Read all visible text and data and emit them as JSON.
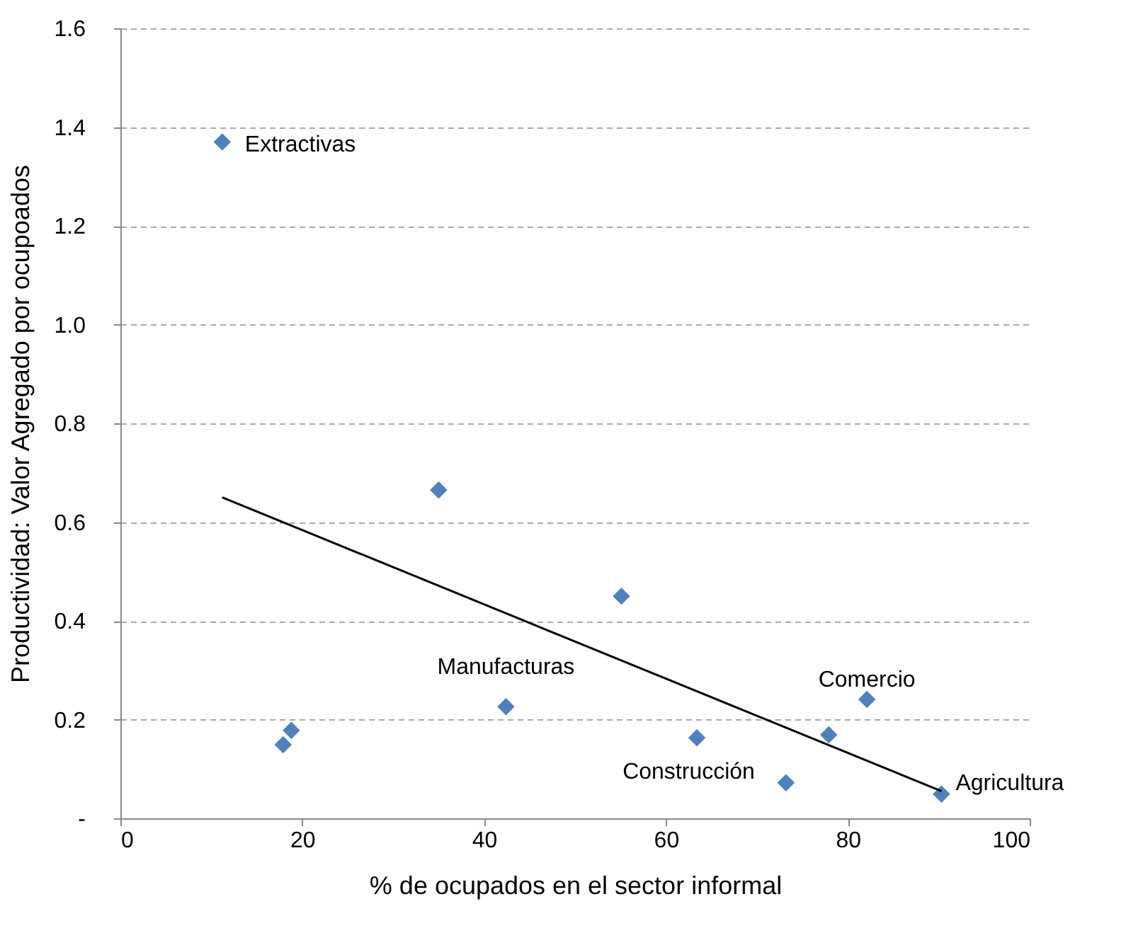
{
  "chart_data": {
    "type": "scatter",
    "xlabel": "% de ocupados en el sector informal",
    "ylabel": "Productividad: Valor Agregado por ocupoados",
    "xlim": [
      0,
      100
    ],
    "xticks": [
      0,
      20,
      40,
      60,
      80,
      100
    ],
    "ylim": [
      0,
      1.6
    ],
    "yticks": [
      {
        "value": 0,
        "label": "-"
      },
      {
        "value": 0.2,
        "label": "0.2"
      },
      {
        "value": 0.4,
        "label": "0.4"
      },
      {
        "value": 0.6,
        "label": "0.6"
      },
      {
        "value": 0.8,
        "label": "0.8"
      },
      {
        "value": 1.0,
        "label": "1.0"
      },
      {
        "value": 1.2,
        "label": "1.2"
      },
      {
        "value": 1.4,
        "label": "1.4"
      },
      {
        "value": 1.6,
        "label": "1.6"
      }
    ],
    "grid": "y",
    "marker": "diamond",
    "series": [
      {
        "color": "#4f81bd",
        "x": [
          11.2,
          35.0,
          55.1,
          18.8,
          17.9,
          42.4,
          63.4,
          73.2,
          77.9,
          82.1,
          90.3
        ],
        "values": [
          1.37,
          0.665,
          0.45,
          0.178,
          0.149,
          0.226,
          0.163,
          0.072,
          0.169,
          0.241,
          0.049
        ]
      },
      {
        "type": "line",
        "color": "#000000",
        "marker": "none",
        "line_style": "solid",
        "x": [
          11.2,
          90.3
        ],
        "values": [
          0.65,
          0.055
        ]
      }
    ],
    "annotations": [
      {
        "text": "Extractivas",
        "x": 11.2,
        "y": 1.37
      },
      {
        "text": "Manufacturas",
        "x": 42.4,
        "y": 0.226
      },
      {
        "text": "Comercio",
        "x": 82.1,
        "y": 0.241
      },
      {
        "text": "Construcción",
        "x": 73.2,
        "y": 0.072
      },
      {
        "text": "Agricultura",
        "x": 90.3,
        "y": 0.049
      }
    ]
  }
}
